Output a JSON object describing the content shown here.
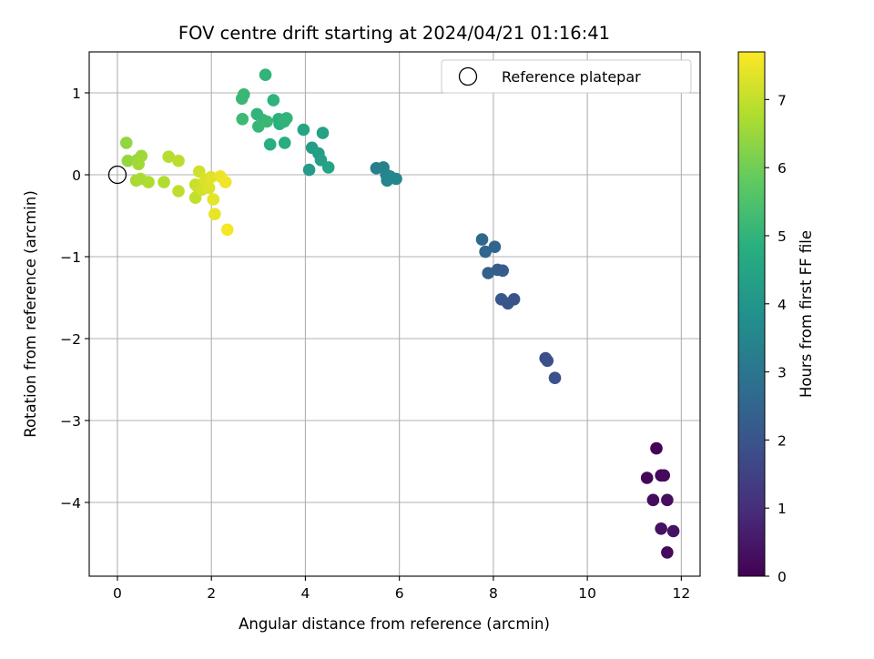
{
  "chart_data": {
    "type": "scatter",
    "title": "FOV centre drift starting at 2024/04/21 01:16:41",
    "xlabel": "Angular distance from reference (arcmin)",
    "ylabel": "Rotation from reference (arcmin)",
    "xlim": [
      -0.6,
      12.4
    ],
    "ylim": [
      -4.9,
      1.5
    ],
    "xticks": [
      0,
      2,
      4,
      6,
      8,
      10,
      12
    ],
    "yticks": [
      1,
      0,
      -1,
      -2,
      -3,
      -4
    ],
    "xtick_labels": [
      "0",
      "2",
      "4",
      "6",
      "8",
      "10",
      "12"
    ],
    "ytick_labels": [
      "1",
      "0",
      "−1",
      "−2",
      "−3",
      "−4"
    ],
    "grid": true,
    "legend": {
      "placement": "top-right",
      "label": "Reference platepar"
    },
    "colorbar": {
      "label": "Hours from first FF file",
      "range": [
        0,
        7.7
      ],
      "ticks": [
        0,
        1,
        2,
        3,
        4,
        5,
        6,
        7
      ],
      "tick_labels": [
        "0",
        "1",
        "2",
        "3",
        "4",
        "5",
        "6",
        "7"
      ],
      "colormap": "viridis"
    },
    "reference_point": {
      "x": 0,
      "y": 0
    },
    "points": [
      {
        "x": 11.47,
        "y": -3.34,
        "c": 0.05
      },
      {
        "x": 11.27,
        "y": -3.7,
        "c": 0.1
      },
      {
        "x": 11.57,
        "y": -3.67,
        "c": 0.15
      },
      {
        "x": 11.63,
        "y": -3.67,
        "c": 0.2
      },
      {
        "x": 11.4,
        "y": -3.97,
        "c": 0.25
      },
      {
        "x": 11.7,
        "y": -3.97,
        "c": 0.3
      },
      {
        "x": 11.57,
        "y": -4.32,
        "c": 0.35
      },
      {
        "x": 11.83,
        "y": -4.35,
        "c": 0.4
      },
      {
        "x": 11.7,
        "y": -4.61,
        "c": 0.2
      },
      {
        "x": 9.11,
        "y": -2.24,
        "c": 1.8
      },
      {
        "x": 9.15,
        "y": -2.27,
        "c": 1.85
      },
      {
        "x": 9.31,
        "y": -2.48,
        "c": 1.9
      },
      {
        "x": 7.76,
        "y": -0.79,
        "c": 2.6
      },
      {
        "x": 7.83,
        "y": -0.94,
        "c": 2.55
      },
      {
        "x": 8.03,
        "y": -0.88,
        "c": 2.5
      },
      {
        "x": 7.89,
        "y": -1.2,
        "c": 2.35
      },
      {
        "x": 8.09,
        "y": -1.16,
        "c": 2.3
      },
      {
        "x": 8.2,
        "y": -1.17,
        "c": 2.25
      },
      {
        "x": 8.17,
        "y": -1.52,
        "c": 2.1
      },
      {
        "x": 8.31,
        "y": -1.57,
        "c": 2.05
      },
      {
        "x": 8.44,
        "y": -1.52,
        "c": 2.0
      },
      {
        "x": 5.51,
        "y": 0.08,
        "c": 3.3
      },
      {
        "x": 5.66,
        "y": 0.09,
        "c": 3.35
      },
      {
        "x": 5.72,
        "y": 0.0,
        "c": 3.4
      },
      {
        "x": 5.74,
        "y": -0.07,
        "c": 3.45
      },
      {
        "x": 5.8,
        "y": -0.02,
        "c": 3.5
      },
      {
        "x": 5.93,
        "y": -0.05,
        "c": 3.55
      },
      {
        "x": 4.08,
        "y": 0.06,
        "c": 4.2
      },
      {
        "x": 4.14,
        "y": 0.33,
        "c": 4.25
      },
      {
        "x": 4.28,
        "y": 0.26,
        "c": 4.3
      },
      {
        "x": 4.33,
        "y": 0.18,
        "c": 4.35
      },
      {
        "x": 4.37,
        "y": 0.51,
        "c": 4.4
      },
      {
        "x": 4.49,
        "y": 0.09,
        "c": 4.45
      },
      {
        "x": 3.96,
        "y": 0.55,
        "c": 4.5
      },
      {
        "x": 3.15,
        "y": 1.22,
        "c": 5.0
      },
      {
        "x": 2.69,
        "y": 0.98,
        "c": 5.1
      },
      {
        "x": 2.65,
        "y": 0.93,
        "c": 5.15
      },
      {
        "x": 2.66,
        "y": 0.68,
        "c": 5.2
      },
      {
        "x": 2.97,
        "y": 0.74,
        "c": 5.0
      },
      {
        "x": 3.09,
        "y": 0.67,
        "c": 5.05
      },
      {
        "x": 3.0,
        "y": 0.59,
        "c": 5.1
      },
      {
        "x": 3.18,
        "y": 0.65,
        "c": 5.15
      },
      {
        "x": 3.32,
        "y": 0.91,
        "c": 4.95
      },
      {
        "x": 3.43,
        "y": 0.68,
        "c": 4.9
      },
      {
        "x": 3.45,
        "y": 0.62,
        "c": 4.85
      },
      {
        "x": 3.55,
        "y": 0.65,
        "c": 4.95
      },
      {
        "x": 3.6,
        "y": 0.69,
        "c": 5.0
      },
      {
        "x": 3.25,
        "y": 0.37,
        "c": 4.8
      },
      {
        "x": 3.56,
        "y": 0.39,
        "c": 4.75
      },
      {
        "x": 0.19,
        "y": 0.39,
        "c": 6.4
      },
      {
        "x": 0.22,
        "y": 0.17,
        "c": 6.45
      },
      {
        "x": 0.42,
        "y": 0.18,
        "c": 6.5
      },
      {
        "x": 0.51,
        "y": 0.23,
        "c": 6.55
      },
      {
        "x": 0.45,
        "y": 0.13,
        "c": 6.6
      },
      {
        "x": 0.4,
        "y": -0.07,
        "c": 6.65
      },
      {
        "x": 0.49,
        "y": -0.05,
        "c": 6.7
      },
      {
        "x": 0.66,
        "y": -0.09,
        "c": 6.75
      },
      {
        "x": 0.99,
        "y": -0.09,
        "c": 6.8
      },
      {
        "x": 1.09,
        "y": 0.22,
        "c": 6.85
      },
      {
        "x": 1.3,
        "y": 0.17,
        "c": 6.9
      },
      {
        "x": 1.3,
        "y": -0.2,
        "c": 6.95
      },
      {
        "x": 1.66,
        "y": -0.28,
        "c": 7.0
      },
      {
        "x": 1.66,
        "y": -0.12,
        "c": 7.05
      },
      {
        "x": 1.71,
        "y": -0.15,
        "c": 7.1
      },
      {
        "x": 1.74,
        "y": 0.04,
        "c": 7.15
      },
      {
        "x": 1.8,
        "y": -0.18,
        "c": 7.2
      },
      {
        "x": 1.87,
        "y": -0.06,
        "c": 7.25
      },
      {
        "x": 1.95,
        "y": -0.16,
        "c": 7.3
      },
      {
        "x": 1.99,
        "y": -0.03,
        "c": 7.35
      },
      {
        "x": 2.04,
        "y": -0.3,
        "c": 7.4
      },
      {
        "x": 2.07,
        "y": -0.48,
        "c": 7.45
      },
      {
        "x": 2.19,
        "y": -0.02,
        "c": 7.5
      },
      {
        "x": 2.3,
        "y": -0.09,
        "c": 7.55
      },
      {
        "x": 2.34,
        "y": -0.67,
        "c": 7.6
      }
    ]
  }
}
